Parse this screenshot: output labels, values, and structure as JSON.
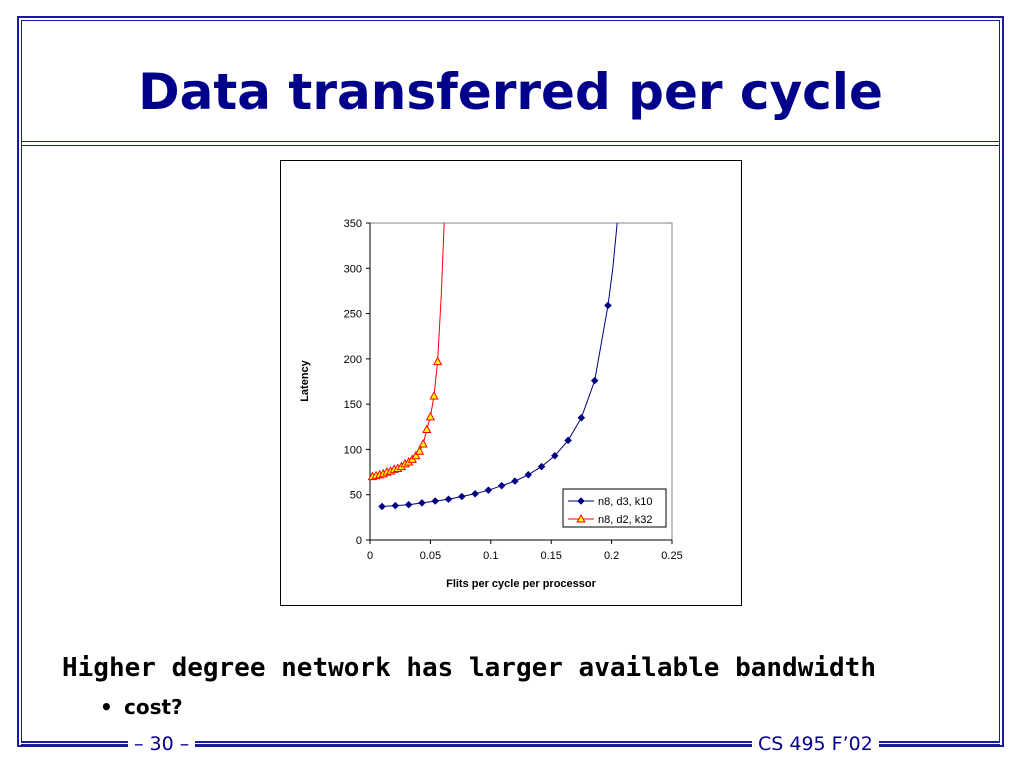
{
  "slide": {
    "title": "Data transferred per cycle",
    "bullet_main": "Higher degree network has larger available bandwidth",
    "bullet_sub": "cost?",
    "bullet_sub_marker": "•",
    "page_number": "– 30 –",
    "course": "CS 495 F’02",
    "title_color": "#00008b",
    "frame_color": "#1a1a9e"
  },
  "chart_data": {
    "type": "line",
    "title": "",
    "xlabel": "Flits per cycle per processor",
    "ylabel": "Latency",
    "xlim": [
      0,
      0.25
    ],
    "ylim": [
      0,
      350
    ],
    "x_ticks": [
      0,
      0.05,
      0.1,
      0.15,
      0.2,
      0.25
    ],
    "x_tick_labels": [
      "0",
      "0.05",
      "0.1",
      "0.15",
      "0.2",
      "0.25"
    ],
    "y_ticks": [
      0,
      50,
      100,
      150,
      200,
      250,
      300,
      350
    ],
    "y_tick_labels": [
      "0",
      "50",
      "100",
      "150",
      "200",
      "250",
      "300",
      "350"
    ],
    "grid": false,
    "legend_position": "bottom-right",
    "series": [
      {
        "name": "n8, d3, k10",
        "color": "#000080",
        "marker": "diamond",
        "x": [
          0.01,
          0.021,
          0.032,
          0.043,
          0.054,
          0.065,
          0.076,
          0.087,
          0.098,
          0.109,
          0.12,
          0.131,
          0.142,
          0.153,
          0.164,
          0.175,
          0.186,
          0.197
        ],
        "y": [
          37,
          38,
          39,
          41,
          43,
          45,
          48,
          51,
          55,
          60,
          65,
          72,
          81,
          93,
          110,
          135,
          176,
          259
        ],
        "curve_x": [
          0.201,
          0.205
        ],
        "curve_y": [
          300,
          355
        ]
      },
      {
        "name": "n8, d2, k32",
        "color": "#ff0000",
        "marker_fill": "#ffff00",
        "marker": "triangle",
        "x": [
          0.002,
          0.005,
          0.008,
          0.011,
          0.014,
          0.017,
          0.02,
          0.023,
          0.026,
          0.029,
          0.032,
          0.035,
          0.038,
          0.041,
          0.044,
          0.047,
          0.05,
          0.053,
          0.056
        ],
        "y": [
          70,
          71,
          72,
          73,
          75,
          76,
          78,
          79,
          81,
          84,
          86,
          89,
          93,
          98,
          106,
          122,
          136,
          159,
          197
        ],
        "curve_x": [
          0.059,
          0.0605,
          0.0615
        ],
        "curve_y": [
          271,
          320,
          355
        ]
      }
    ]
  }
}
